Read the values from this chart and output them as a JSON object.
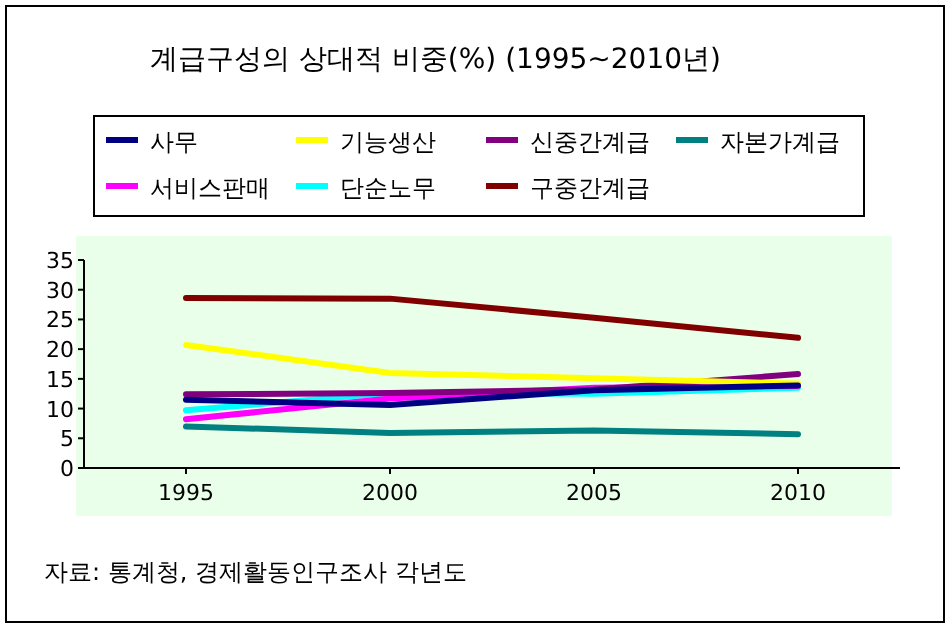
{
  "chart_data": {
    "type": "line",
    "title": "계급구성의 상대적 비중(%) (1995~2010년)",
    "x": [
      1995,
      2000,
      2005,
      2010
    ],
    "series": [
      {
        "name": "사무",
        "color": "#000080",
        "values": [
          11.5,
          10.6,
          13.1,
          13.9
        ]
      },
      {
        "name": "기능생산",
        "color": "#ffff00",
        "values": [
          20.7,
          16.0,
          15.1,
          14.2
        ]
      },
      {
        "name": "신중간계급",
        "color": "#800080",
        "values": [
          12.4,
          12.6,
          13.2,
          15.8
        ]
      },
      {
        "name": "자본가계급",
        "color": "#008080",
        "values": [
          7.0,
          5.9,
          6.3,
          5.7
        ]
      },
      {
        "name": "서비스판매",
        "color": "#ff00ff",
        "values": [
          8.2,
          11.7,
          13.5,
          13.8
        ]
      },
      {
        "name": "단순노무",
        "color": "#00ffff",
        "values": [
          9.7,
          12.6,
          12.5,
          13.5
        ]
      },
      {
        "name": "구중간계급",
        "color": "#800000",
        "values": [
          28.6,
          28.5,
          25.3,
          21.9
        ]
      }
    ],
    "xlim": [
      1992.5,
      2012.5
    ],
    "xticks": [
      1995,
      2000,
      2005,
      2010
    ],
    "ylim": [
      0,
      35
    ],
    "yticks": [
      0,
      5,
      10,
      15,
      20,
      25,
      30,
      35
    ],
    "grid": false,
    "legend": "top",
    "marker": "none",
    "line_style": "solid",
    "annotations": [
      "자료: 통계청, 경제활동인구조사 각년도"
    ]
  }
}
